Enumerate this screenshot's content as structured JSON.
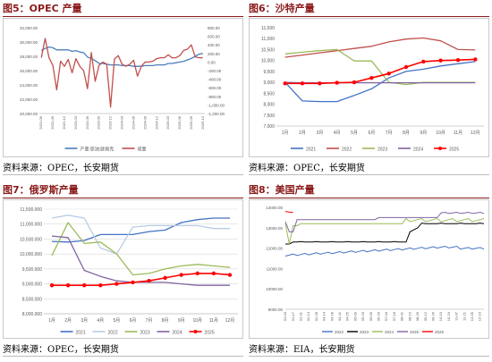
{
  "panels": {
    "tl": {
      "title": "图5：OPEC 产量",
      "source": "资料来源：OPEC，长安期货",
      "chart_data": {
        "type": "line",
        "categories": [
          "2022-06",
          "2022-07",
          "2022-08",
          "2022-09",
          "2022-10",
          "2022-11",
          "2022-12",
          "2023-01",
          "2023-02",
          "2023-03",
          "2023-04",
          "2023-05",
          "2023-06",
          "2023-07",
          "2023-08",
          "2023-09",
          "2023-10",
          "2023-11",
          "2023-12",
          "2024-01",
          "2024-02",
          "2024-03",
          "2024-04",
          "2024-05",
          "2024-06",
          "2024-07",
          "2024-08",
          "2024-09",
          "2024-10",
          "2024-11",
          "2024-12",
          "2025-01",
          "2025-02",
          "2025-03",
          "2025-04",
          "2025-05",
          "2025-06",
          "2025-07",
          "2025-08",
          "2025-09",
          "2025-10",
          "2025-11",
          "2025-12"
        ],
        "x_tick_labels": [
          "2022-06",
          "2022-09",
          "2022-12",
          "2023-03",
          "2023-06",
          "2023-09",
          "2023-12",
          "2024-03",
          "2024-06",
          "2024-09",
          "2024-12",
          "2025-03",
          "2025-06",
          "2025-09",
          "2025-12"
        ],
        "ylim": [
          20000,
          32000
        ],
        "y_ticks": [
          "32,000.00",
          "30,000.00",
          "28,000.00",
          "26,000.00",
          "24,000.00",
          "22,000.00",
          "20,000.00"
        ],
        "y2lim": [
          -1200,
          800
        ],
        "y2_ticks": [
          "800.00",
          "600.00",
          "400.00",
          "200.00",
          "0.00",
          "-200.00",
          "-400.00",
          "-600.00",
          "-800.00",
          "-1,000.00",
          "-1,200.00"
        ],
        "series": [
          {
            "name": "产量:原油:欧佩克",
            "color": "#4a7ebb",
            "axis": "left",
            "values": [
              28800,
              29100,
              29300,
              29200,
              28900,
              28900,
              28900,
              28900,
              28700,
              28800,
              28600,
              28500,
              27900,
              27700,
              27400,
              27000,
              27000,
              26900,
              26800,
              26800,
              26800,
              26700,
              26700,
              26700,
              26600,
              26600,
              26600,
              26700,
              26700,
              26700,
              26800,
              26800,
              26800,
              27000,
              27000,
              27100,
              27200,
              27300,
              27500,
              27700,
              28000,
              28300,
              28400
            ]
          },
          {
            "name": "增量",
            "color": "#c0504d",
            "axis": "right",
            "values": [
              100,
              550,
              100,
              -80,
              -650,
              20,
              -100,
              60,
              -250,
              80,
              -100,
              -200,
              -620,
              220,
              -450,
              -80,
              0,
              -50,
              -1050,
              70,
              150,
              -50,
              -100,
              -50,
              40,
              -330,
              -100,
              0,
              0,
              20,
              80,
              100,
              100,
              170,
              100,
              100,
              150,
              270,
              300,
              400,
              120,
              100,
              100
            ]
          }
        ]
      }
    },
    "tr": {
      "title": "图6：沙特产量",
      "source": "资料来源：OPEC，长安期货",
      "chart_data": {
        "type": "line",
        "categories": [
          "1月",
          "2月",
          "3月",
          "4月",
          "5月",
          "6月",
          "7月",
          "8月",
          "9月",
          "10月",
          "11月",
          "12月"
        ],
        "ylim": [
          7000,
          11500
        ],
        "y_ticks": [
          "11,500",
          "11,000",
          "10,500",
          "10,000",
          "9,500",
          "9,000",
          "8,500",
          "8,000",
          "7,500",
          "7,000"
        ],
        "series": [
          {
            "name": "2021",
            "color": "#4472c4",
            "values": [
              9000,
              8150,
              8120,
              8120,
              8400,
              8700,
              9200,
              9500,
              9600,
              9750,
              9850,
              9950
            ]
          },
          {
            "name": "2022",
            "color": "#c0504d",
            "values": [
              10150,
              10250,
              10350,
              10450,
              10550,
              10650,
              10850,
              10980,
              11030,
              10900,
              10500,
              10480
            ]
          },
          {
            "name": "2023",
            "color": "#9bbb59",
            "values": [
              10300,
              10380,
              10450,
              10500,
              9980,
              9980,
              9000,
              8900,
              9000,
              9000,
              9000,
              9000
            ]
          },
          {
            "name": "2024",
            "color": "#8064a2",
            "values": [
              9000,
              8980,
              8980,
              8980,
              8980,
              8980,
              8980,
              8980,
              8980,
              8980,
              8980,
              8980
            ]
          },
          {
            "name": "2025",
            "color": "#ff0000",
            "values": [
              8950,
              8950,
              8950,
              8980,
              9000,
              9200,
              9400,
              9700,
              9950,
              10000,
              10020,
              10050
            ]
          }
        ]
      }
    },
    "bl": {
      "title": "图7：俄罗斯产量",
      "source": "资料来源：OPEC，长安期货",
      "chart_data": {
        "type": "line",
        "categories": [
          "1月",
          "2月",
          "3月",
          "4月",
          "5月",
          "6月",
          "7月",
          "8月",
          "9月",
          "10月",
          "11月",
          "12月"
        ],
        "ylim": [
          8000,
          11500
        ],
        "y_ticks": [
          "11,500.000",
          "11,000.000",
          "10,500.000",
          "10,000.000",
          "9,500.000",
          "9,000.000",
          "8,500.000",
          "8,000.000"
        ],
        "series": [
          {
            "name": "2021",
            "color": "#4472c4",
            "values": [
              10420,
              10400,
              10450,
              10650,
              10650,
              10650,
              10750,
              10800,
              11050,
              11150,
              11200,
              11200
            ]
          },
          {
            "name": "2022",
            "color": "#b8cce4",
            "values": [
              11200,
              11300,
              11200,
              10200,
              10000,
              10900,
              10950,
              10950,
              10950,
              10950,
              10850,
              10850
            ]
          },
          {
            "name": "2023",
            "color": "#9bbb59",
            "values": [
              9950,
              11050,
              10350,
              10400,
              10000,
              9300,
              9350,
              9500,
              9600,
              9650,
              9600,
              9550
            ]
          },
          {
            "name": "2024",
            "color": "#8064a2",
            "values": [
              10600,
              10550,
              9450,
              9250,
              9100,
              9050,
              9050,
              9050,
              9000,
              8950,
              8950,
              8950
            ]
          },
          {
            "name": "2025",
            "color": "#ff0000",
            "values": [
              8950,
              8950,
              8950,
              8950,
              9000,
              9050,
              9100,
              9200,
              9300,
              9350,
              9350,
              9300
            ]
          }
        ]
      }
    },
    "br": {
      "title": "图8：美国产量",
      "source": "资料来源：EIA，长安期货",
      "chart_data": {
        "type": "line",
        "categories": [
          "01-03",
          "01-10",
          "01-17",
          "01-24",
          "01-31",
          "02-07",
          "02-14",
          "02-21",
          "02-28",
          "03-07",
          "03-14",
          "03-21",
          "03-28",
          "04-04",
          "04-11",
          "04-18",
          "04-25",
          "05-02",
          "05-09",
          "05-16",
          "05-23",
          "05-30",
          "06-06",
          "06-13",
          "06-20",
          "06-27",
          "07-04",
          "07-11",
          "07-18",
          "07-25",
          "08-01",
          "08-08",
          "08-15",
          "08-22",
          "08-29",
          "09-05",
          "09-12",
          "09-19",
          "09-26",
          "10-03",
          "10-10",
          "10-17",
          "10-24",
          "10-31",
          "11-07",
          "11-14",
          "11-21",
          "11-28",
          "12-05",
          "12-12",
          "12-19",
          "12-26"
        ],
        "x_tick_labels": [
          "01-03",
          "01-17",
          "01-31",
          "02-14",
          "02-28",
          "03-14",
          "03-28",
          "04-11",
          "04-25",
          "05-09",
          "05-23",
          "06-06",
          "06-20",
          "07-04",
          "07-18",
          "08-01",
          "08-15",
          "08-29",
          "09-12",
          "09-26",
          "10-10",
          "10-24",
          "11-07",
          "11-21",
          "12-05",
          "12-19"
        ],
        "ylim": [
          9000,
          14000
        ],
        "y_ticks": [
          "14000.00",
          "13000.00",
          "12000.00",
          "11000.00",
          "10000.00",
          "9000.00"
        ],
        "series": [
          {
            "name": "2022",
            "color": "#4472c4"
          },
          {
            "name": "2023",
            "color": "#000000"
          },
          {
            "name": "2024",
            "color": "#9bbb59"
          },
          {
            "name": "2025",
            "color": "#8064a2"
          },
          {
            "name": "2026",
            "color": "#ff0000"
          }
        ]
      }
    }
  }
}
